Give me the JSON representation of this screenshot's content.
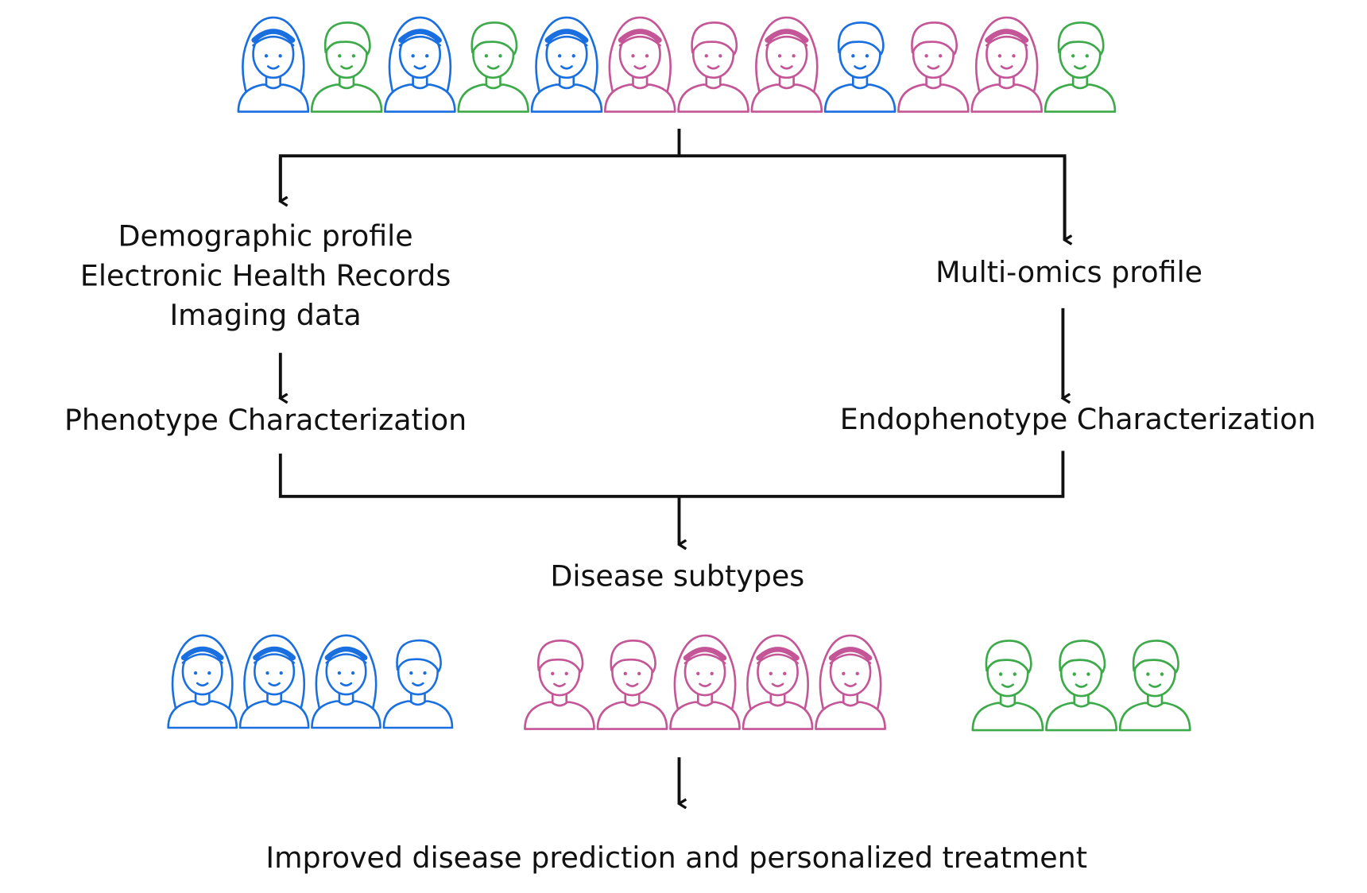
{
  "left_branch": {
    "inputs": [
      "Demographic profile",
      "Electronic Health Records",
      "Imaging data"
    ],
    "output": "Phenotype Characterization"
  },
  "right_branch": {
    "input": "Multi-omics profile",
    "output": "Endophenotype Characterization"
  },
  "merge_output": "Disease subtypes",
  "final_output": "Improved disease prediction and personalized treatment"
}
